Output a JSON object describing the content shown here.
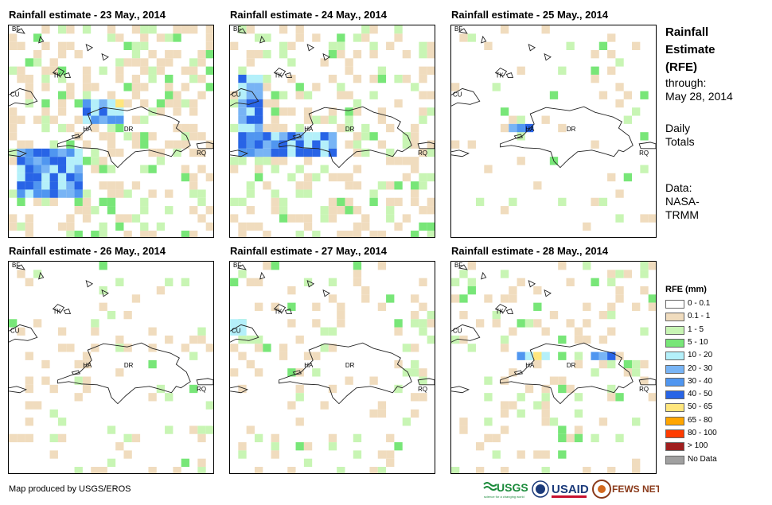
{
  "panels": [
    {
      "title": "Rainfall estimate - 23 May., 2014"
    },
    {
      "title": "Rainfall estimate - 24 May., 2014"
    },
    {
      "title": "Rainfall estimate - 25 May., 2014"
    },
    {
      "title": "Rainfall estimate - 26 May., 2014"
    },
    {
      "title": "Rainfall estimate - 27 May., 2014"
    },
    {
      "title": "Rainfall estimate - 28 May., 2014"
    }
  ],
  "map_labels": {
    "bf": "BF",
    "tk": "TK",
    "cu": "CU",
    "ha": "HA",
    "dr": "DR",
    "rq": "RQ"
  },
  "side": {
    "title_line1": "Rainfall",
    "title_line2": "Estimate",
    "title_line3": "(RFE)",
    "through": "through:",
    "date": "May 28, 2014",
    "daily1": "Daily",
    "daily2": "Totals",
    "data1": "Data:",
    "data2": "NASA-",
    "data3": "TRMM"
  },
  "legend": {
    "title": "RFE (mm)",
    "items": [
      {
        "label": "0 - 0.1",
        "color": "#ffffff"
      },
      {
        "label": "0.1 - 1",
        "color": "#f0dcbe"
      },
      {
        "label": "1 - 5",
        "color": "#c8f5b4"
      },
      {
        "label": "5 - 10",
        "color": "#78e678"
      },
      {
        "label": "10 - 20",
        "color": "#b4f0fa"
      },
      {
        "label": "20 - 30",
        "color": "#78b4f5"
      },
      {
        "label": "30 - 40",
        "color": "#5096f0"
      },
      {
        "label": "40 - 50",
        "color": "#2864e6"
      },
      {
        "label": "50 - 65",
        "color": "#ffe67d"
      },
      {
        "label": "65 - 80",
        "color": "#ffa500"
      },
      {
        "label": "80 - 100",
        "color": "#ff3c00"
      },
      {
        "label": "> 100",
        "color": "#a01e1e"
      },
      {
        "label": "No Data",
        "color": "#a0a0a0"
      }
    ]
  },
  "footer": {
    "credit": "Map produced by USGS/EROS"
  },
  "logos": {
    "usgs": "USGS",
    "usgs_tag": "science for a changing world",
    "usaid": "USAID",
    "fews": "FEWS NET"
  },
  "colors": {
    "tan": "#f0dcbe",
    "light_green": "#c8f5b4",
    "green": "#78e678",
    "cyan": "#b4f0fa",
    "blue_light": "#78b4f5",
    "blue": "#5096f0",
    "blue_dark": "#2864e6",
    "yellow": "#ffe67d",
    "orange": "#ffa500",
    "red": "#ff3c00"
  }
}
